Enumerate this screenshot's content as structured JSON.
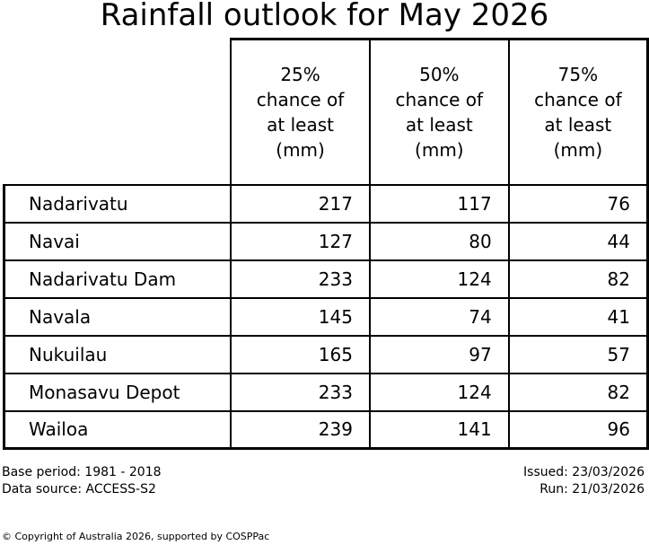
{
  "title": "Rainfall outlook for May 2026",
  "header_display": [
    "25%\nchance of\nat least\n(mm)",
    "50%\nchance of\nat least\n(mm)",
    "75%\nchance of\nat least\n(mm)"
  ],
  "chart_data": {
    "type": "table",
    "title": "Rainfall outlook for May 2026",
    "columns": [
      "",
      "25% chance of at least (mm)",
      "50% chance of at least (mm)",
      "75% chance of at least (mm)"
    ],
    "rows": [
      {
        "station": "Nadarivatu",
        "values": [
          217,
          117,
          76
        ]
      },
      {
        "station": "Navai",
        "values": [
          127,
          80,
          44
        ]
      },
      {
        "station": "Nadarivatu Dam",
        "values": [
          233,
          124,
          82
        ]
      },
      {
        "station": "Navala",
        "values": [
          145,
          74,
          41
        ]
      },
      {
        "station": "Nukuilau",
        "values": [
          165,
          97,
          57
        ]
      },
      {
        "station": "Monasavu Depot",
        "values": [
          233,
          124,
          82
        ]
      },
      {
        "station": "Wailoa",
        "values": [
          239,
          141,
          96
        ]
      }
    ]
  },
  "footer": {
    "base_period": "Base period: 1981 - 2018",
    "data_source": "Data source: ACCESS-S2",
    "issued": "Issued: 23/03/2026",
    "run": "Run: 21/03/2026"
  },
  "copyright": "© Copyright of Australia 2026, supported by COSPPac"
}
